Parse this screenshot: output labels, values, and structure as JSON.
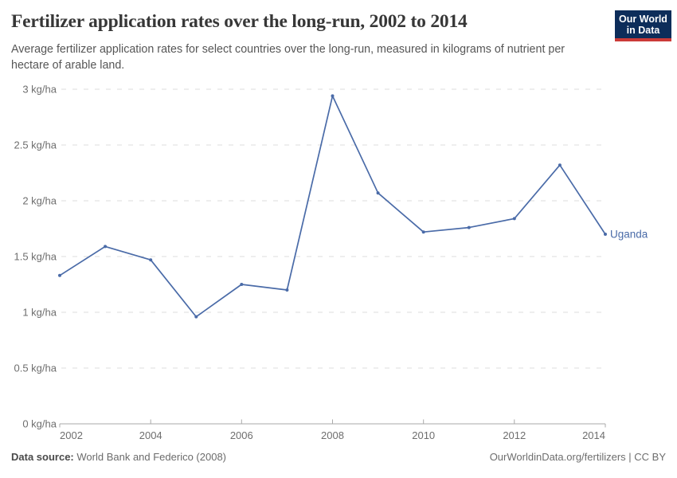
{
  "header": {
    "title": "Fertilizer application rates over the long-run, 2002 to 2014",
    "subtitle": "Average fertilizer application rates for select countries over the long-run, measured in kilograms of nutrient per hectare of arable land.",
    "logo": {
      "line1": "Our World",
      "line2": "in Data",
      "bg_color": "#0d2d5a",
      "accent_color": "#cb3b38"
    }
  },
  "footer": {
    "source_label": "Data source:",
    "source_text": "World Bank and Federico (2008)",
    "credit_text": "OurWorldinData.org/fertilizers | CC BY"
  },
  "chart_data": {
    "type": "line",
    "title": "Fertilizer application rates over the long-run, 2002 to 2014",
    "xlabel": "",
    "ylabel": "kilograms of nutrient per hectare of arable land",
    "xlim": [
      2002,
      2014
    ],
    "ylim": [
      0,
      3
    ],
    "grid": "horizontal-dashed",
    "legend_position": "end-of-line",
    "x": [
      2002,
      2003,
      2004,
      2005,
      2006,
      2007,
      2008,
      2009,
      2010,
      2011,
      2012,
      2013,
      2014
    ],
    "series": [
      {
        "name": "Uganda",
        "color": "#4a6ba8",
        "values": [
          1.33,
          1.59,
          1.47,
          0.96,
          1.25,
          1.2,
          2.94,
          2.07,
          1.72,
          1.76,
          1.84,
          2.32,
          1.7
        ]
      }
    ],
    "x_ticks": [
      2002,
      2004,
      2006,
      2008,
      2010,
      2012,
      2014
    ],
    "y_ticks": [
      0,
      0.5,
      1,
      1.5,
      2,
      2.5,
      3
    ],
    "y_tick_labels": [
      "0 kg/ha",
      "0.5 kg/ha",
      "1 kg/ha",
      "1.5 kg/ha",
      "2 kg/ha",
      "2.5 kg/ha",
      "3 kg/ha"
    ],
    "axis_color": "#a9a9a9",
    "grid_color": "#dedede",
    "tick_label_color": "#6e6e6e"
  }
}
